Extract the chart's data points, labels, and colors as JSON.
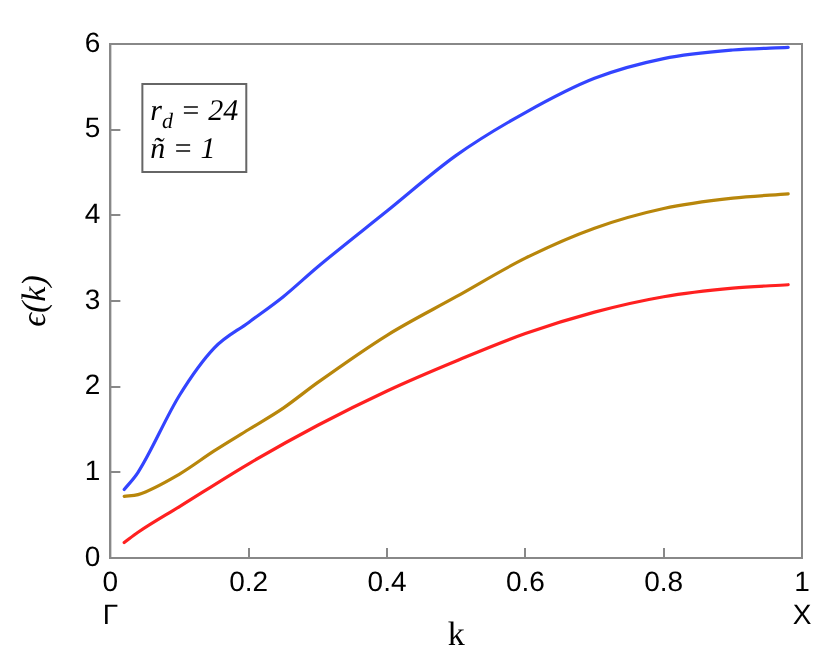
{
  "chart_data": {
    "type": "line",
    "xlabel": "k",
    "ylabel": "ϵ(k)",
    "xlim": [
      0,
      1
    ],
    "ylim": [
      0,
      6
    ],
    "xticks": [
      {
        "value": 0,
        "label": "0\nΓ"
      },
      0.2,
      0.4,
      0.6,
      0.8,
      {
        "value": 1,
        "label": "1\nX"
      }
    ],
    "yticks": [
      0,
      1,
      2,
      3,
      4,
      5,
      6
    ],
    "grid": false,
    "legend": false,
    "marker": "none",
    "line_style": "solid",
    "annotations": [
      "r$_{d}$ = 24",
      "ñ = 1"
    ],
    "series": [
      {
        "color": "#3344ff",
        "x": [
          0.02,
          0.04,
          0.1,
          0.15,
          0.2,
          0.25,
          0.3,
          0.4,
          0.5,
          0.6,
          0.7,
          0.8,
          0.9,
          0.98
        ],
        "values": [
          0.8,
          1.0,
          1.9,
          2.45,
          2.75,
          3.05,
          3.4,
          4.05,
          4.7,
          5.2,
          5.6,
          5.83,
          5.93,
          5.96
        ]
      },
      {
        "color": "#b8860b",
        "x": [
          0.02,
          0.04,
          0.1,
          0.15,
          0.2,
          0.25,
          0.3,
          0.4,
          0.5,
          0.6,
          0.7,
          0.8,
          0.9,
          0.98
        ],
        "values": [
          0.72,
          0.74,
          0.98,
          1.25,
          1.5,
          1.75,
          2.05,
          2.6,
          3.05,
          3.5,
          3.85,
          4.08,
          4.2,
          4.25
        ]
      },
      {
        "color": "#ff2020",
        "x": [
          0.02,
          0.04,
          0.1,
          0.2,
          0.3,
          0.4,
          0.5,
          0.6,
          0.7,
          0.8,
          0.9,
          0.98
        ],
        "values": [
          0.18,
          0.3,
          0.6,
          1.1,
          1.55,
          1.95,
          2.3,
          2.62,
          2.87,
          3.05,
          3.15,
          3.19
        ]
      }
    ]
  }
}
